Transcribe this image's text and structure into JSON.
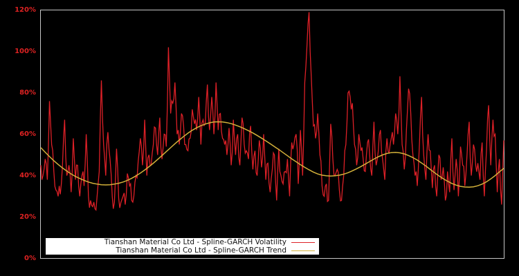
{
  "chart_data": {
    "type": "line",
    "title": "",
    "xlabel": "",
    "ylabel": "",
    "ylim": [
      0,
      120
    ],
    "y_ticks": [
      "0%",
      "20%",
      "40%",
      "60%",
      "80%",
      "100%",
      "120%"
    ],
    "y_tick_values": [
      0,
      20,
      40,
      60,
      80,
      100,
      120
    ],
    "grid": false,
    "legend_position": "lower left",
    "colors": {
      "background": "#000000",
      "frame": "#c8c8c8",
      "tick_text": "#dd2222",
      "volatility": "#dd2027",
      "trend": "#d4b23a"
    },
    "x_count": 135,
    "series": [
      {
        "name": "Tianshan Material Co Ltd - Spline-GARCH Volatility",
        "values": [
          45,
          40,
          48,
          38,
          76,
          55,
          42,
          33,
          30,
          31,
          45,
          67,
          40,
          45,
          32,
          58,
          38,
          45,
          30,
          40,
          35,
          60,
          30,
          28,
          25,
          24,
          30,
          42,
          86,
          55,
          40,
          61,
          48,
          30,
          27,
          53,
          29,
          27,
          30,
          26,
          41,
          35,
          28,
          30,
          40,
          47,
          58,
          45,
          67,
          40,
          50,
          45,
          55,
          63,
          50,
          68,
          48,
          60,
          54,
          102,
          70,
          75,
          85,
          60,
          55,
          70,
          64,
          55,
          52,
          58,
          72,
          65,
          62,
          78,
          55,
          67,
          65,
          84,
          62,
          78,
          60,
          85,
          62,
          70,
          58,
          55,
          50,
          63,
          45,
          67,
          50,
          60,
          45,
          68,
          55,
          52,
          48,
          64,
          43,
          52,
          40,
          57,
          44,
          60,
          38,
          46,
          32,
          43,
          50,
          28,
          53,
          40,
          36,
          42,
          48,
          30,
          56,
          55,
          60,
          36,
          62,
          40,
          85,
          102,
          119,
          88,
          64,
          58,
          70,
          50,
          35,
          30,
          36,
          28,
          65
        ],
        "values_tail": [
          48,
          40,
          43,
          33,
          28,
          40,
          55,
          80,
          78,
          75,
          55,
          45,
          60,
          52,
          48,
          42,
          56,
          50,
          40,
          66,
          45,
          52,
          62,
          48,
          38,
          58,
          51,
          58,
          55,
          70,
          60,
          88,
          55,
          43,
          62,
          82,
          70,
          50,
          40,
          35,
          55,
          78,
          50,
          38,
          60,
          52,
          34,
          45,
          30,
          50,
          38,
          44,
          28,
          42,
          32,
          58,
          33,
          48,
          30,
          54,
          45,
          35,
          50,
          66,
          40,
          55,
          45,
          46,
          38,
          56,
          30,
          52,
          74,
          45,
          67,
          60,
          32,
          48,
          26,
          57
        ]
      },
      {
        "name": "Tianshan Material Co Ltd - Spline-GARCH Trend",
        "values": [
          53.5,
          51.3,
          49.2,
          47.2,
          45.4,
          43.7,
          42.2,
          40.8,
          39.6,
          38.6,
          37.7,
          36.9,
          36.3,
          35.9,
          35.6,
          35.5,
          35.6,
          35.9,
          36.3,
          36.9,
          37.7,
          38.7,
          39.9,
          41.2,
          42.7,
          44.3,
          46.0,
          47.8,
          49.7,
          51.6,
          53.5,
          55.4,
          57.2,
          58.9,
          60.5,
          61.9,
          63.1,
          64.1,
          64.9,
          65.5,
          65.9,
          66.0,
          65.9,
          65.6,
          65.1,
          64.4,
          63.6,
          62.7,
          61.7,
          60.6,
          59.4,
          58.1,
          56.8,
          55.4,
          54.0,
          52.6,
          51.1,
          49.6,
          48.1,
          46.7,
          45.3,
          44.0,
          42.8,
          41.7,
          40.8,
          40.2,
          39.9,
          39.8,
          39.9,
          40.2,
          40.7,
          41.4,
          42.3,
          43.3,
          44.4,
          45.6,
          46.8,
          48.0,
          49.1,
          50.0,
          50.7,
          51.1,
          51.2,
          51.0,
          50.5,
          49.7,
          48.7,
          47.5,
          46.1,
          44.6,
          43.0,
          41.4,
          39.9,
          38.5,
          37.3,
          36.2,
          35.4,
          34.8,
          34.5,
          34.4,
          34.6,
          35.1,
          35.9,
          37.0,
          38.4,
          40.0,
          41.8,
          43.5
        ]
      }
    ]
  },
  "legend": {
    "items": [
      {
        "label": "Tianshan Material Co Ltd - Spline-GARCH Volatility",
        "color": "#dd2027"
      },
      {
        "label": "Tianshan Material Co Ltd - Spline-GARCH Trend",
        "color": "#d4b23a"
      }
    ]
  },
  "axis": {
    "y_labels": [
      "120%",
      "100%",
      "80%",
      "60%",
      "40%",
      "20%",
      "0%"
    ]
  }
}
